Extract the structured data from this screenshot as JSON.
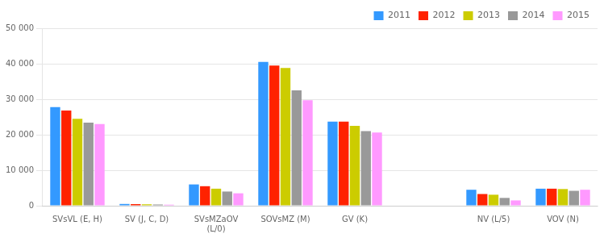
{
  "chart_data": {
    "type": "bar",
    "categories": [
      "SVsVL (E, H)",
      "SV (J, C, D)",
      "SVsMZaOV\n(L/0)",
      "SOVsMZ (M)",
      "GV (K)",
      null,
      "NV (L/5)",
      "VOV (N)"
    ],
    "series": [
      {
        "name": "2011",
        "color": "#3399FF",
        "values": [
          27800,
          500,
          6000,
          40500,
          23700,
          0,
          4500,
          4800
        ]
      },
      {
        "name": "2012",
        "color": "#FF2200",
        "values": [
          26800,
          450,
          5500,
          39500,
          23700,
          0,
          3300,
          4800
        ]
      },
      {
        "name": "2013",
        "color": "#CCCC00",
        "values": [
          24500,
          400,
          4800,
          38800,
          22500,
          0,
          3100,
          4700
        ]
      },
      {
        "name": "2014",
        "color": "#999999",
        "values": [
          23400,
          350,
          4000,
          32500,
          21000,
          0,
          2200,
          4200
        ]
      },
      {
        "name": "2015",
        "color": "#FF99FF",
        "values": [
          23000,
          300,
          3500,
          29700,
          20600,
          0,
          1500,
          4500
        ]
      }
    ],
    "ylim": [
      0,
      50000
    ],
    "yticks": [
      0,
      {
        "value": 10000,
        "label": "10 000"
      },
      {
        "value": 20000,
        "label": "20 000"
      },
      {
        "value": 30000,
        "label": "30 000"
      },
      {
        "value": 40000,
        "label": "40 000"
      },
      {
        "value": 50000,
        "label": "50 000"
      }
    ],
    "grid": true,
    "legend": "upper right"
  }
}
